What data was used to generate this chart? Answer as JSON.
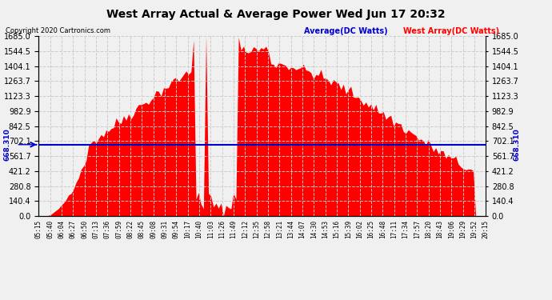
{
  "title": "West Array Actual & Average Power Wed Jun 17 20:32",
  "copyright": "Copyright 2020 Cartronics.com",
  "legend_avg": "Average(DC Watts)",
  "legend_west": "West Array(DC Watts)",
  "avg_value": 668.31,
  "ymax": 1685.0,
  "yticks": [
    0.0,
    140.4,
    280.8,
    421.2,
    561.7,
    702.1,
    842.5,
    982.9,
    1123.3,
    1263.7,
    1404.1,
    1544.5,
    1685.0
  ],
  "background_color": "#f0f0f0",
  "fill_color": "#ff0000",
  "avg_line_color": "#0000cc",
  "grid_color": "#cccccc",
  "title_color": "#000000",
  "copyright_color": "#000000",
  "legend_avg_color": "#0000cc",
  "legend_west_color": "#ff0000",
  "left_label_color": "#000000"
}
